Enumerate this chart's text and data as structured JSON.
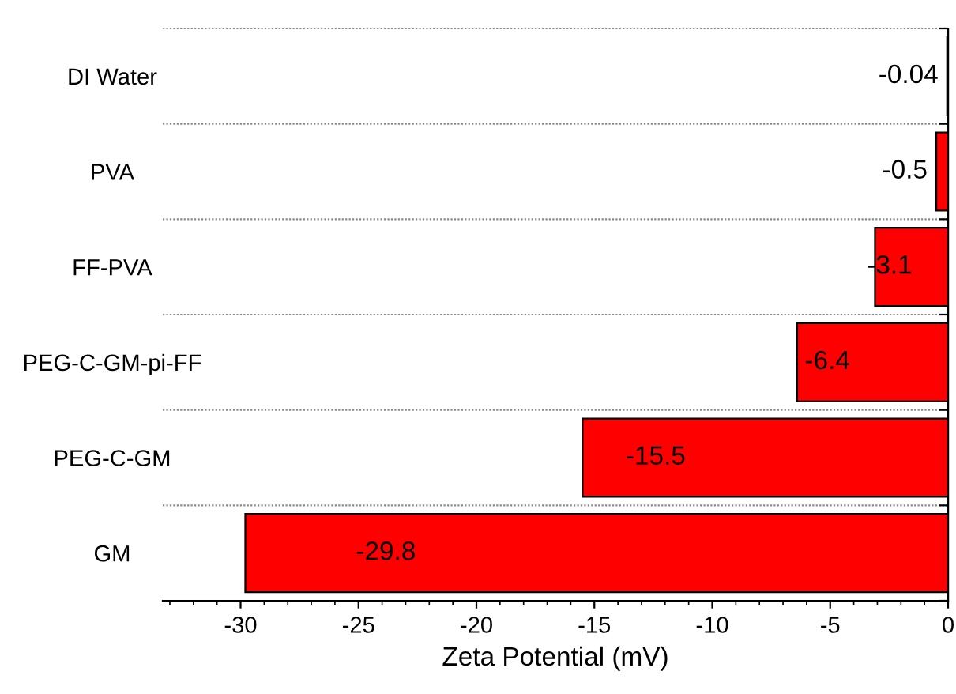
{
  "chart_data": {
    "type": "bar",
    "orientation": "horizontal",
    "xlabel": "Zeta Potential (mV)",
    "categories": [
      "DI Water",
      "PVA",
      "FF-PVA",
      "PEG-C-GM-pi-FF",
      "PEG-C-GM",
      "GM"
    ],
    "values": [
      -0.04,
      -0.5,
      -3.1,
      -6.4,
      -15.5,
      -29.8
    ],
    "color": "#ff0000",
    "data_labels": true,
    "grid": "y",
    "xlim": [
      -33.3,
      0
    ],
    "xticks": [
      -30,
      -25,
      -20,
      -15,
      -10,
      -5,
      0
    ]
  }
}
